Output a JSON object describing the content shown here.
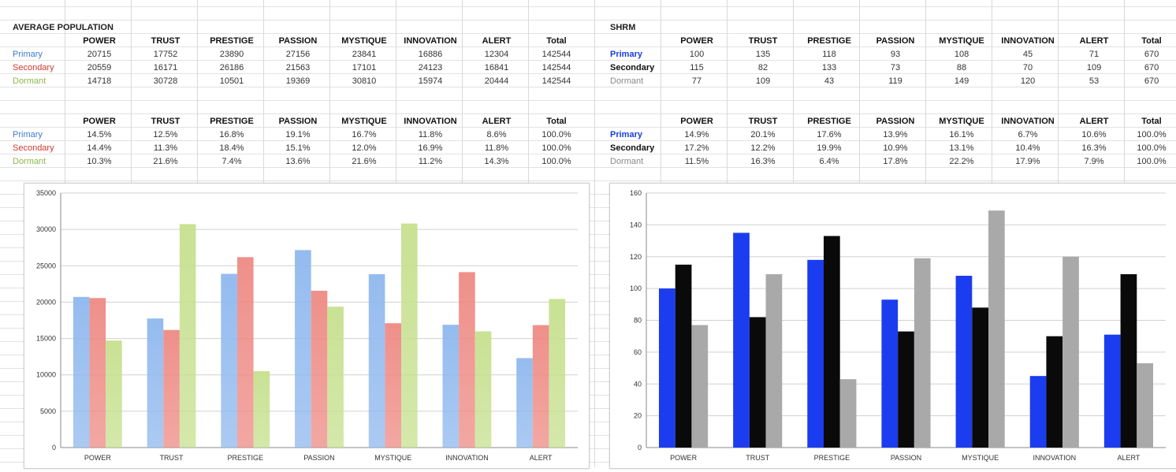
{
  "left_table": {
    "title": "AVERAGE POPULATION",
    "headers": [
      "POWER",
      "TRUST",
      "PRESTIGE",
      "PASSION",
      "MYSTIQUE",
      "INNOVATION",
      "ALERT",
      "Total"
    ],
    "rows": [
      {
        "label": "Primary",
        "color": "#3d7ad6",
        "values": [
          "20715",
          "17752",
          "23890",
          "27156",
          "23841",
          "16886",
          "12304",
          "142544"
        ]
      },
      {
        "label": "Secondary",
        "color": "#d2392e",
        "values": [
          "20559",
          "16171",
          "26186",
          "21563",
          "17101",
          "24123",
          "16841",
          "142544"
        ]
      },
      {
        "label": "Dormant",
        "color": "#8cb84a",
        "values": [
          "14718",
          "30728",
          "10501",
          "19369",
          "30810",
          "15974",
          "20444",
          "142544"
        ]
      }
    ],
    "pct_headers": [
      "POWER",
      "TRUST",
      "PRESTIGE",
      "PASSION",
      "MYSTIQUE",
      "INNOVATION",
      "ALERT",
      "Total"
    ],
    "pct_rows": [
      {
        "label": "Primary",
        "color": "#3d7ad6",
        "values": [
          "14.5%",
          "12.5%",
          "16.8%",
          "19.1%",
          "16.7%",
          "11.8%",
          "8.6%",
          "100.0%"
        ]
      },
      {
        "label": "Secondary",
        "color": "#d2392e",
        "values": [
          "14.4%",
          "11.3%",
          "18.4%",
          "15.1%",
          "12.0%",
          "16.9%",
          "11.8%",
          "100.0%"
        ]
      },
      {
        "label": "Dormant",
        "color": "#8cb84a",
        "values": [
          "10.3%",
          "21.6%",
          "7.4%",
          "13.6%",
          "21.6%",
          "11.2%",
          "14.3%",
          "100.0%"
        ]
      }
    ]
  },
  "right_table": {
    "title": "SHRM",
    "headers": [
      "POWER",
      "TRUST",
      "PRESTIGE",
      "PASSION",
      "MYSTIQUE",
      "INNOVATION",
      "ALERT",
      "Total"
    ],
    "rows": [
      {
        "label": "Primary",
        "color": "#1a3fe0",
        "values": [
          "100",
          "135",
          "118",
          "93",
          "108",
          "45",
          "71",
          "670"
        ]
      },
      {
        "label": "Secondary",
        "color": "#111111",
        "values": [
          "115",
          "82",
          "133",
          "73",
          "88",
          "70",
          "109",
          "670"
        ]
      },
      {
        "label": "Dormant",
        "color": "#8a8a8a",
        "values": [
          "77",
          "109",
          "43",
          "119",
          "149",
          "120",
          "53",
          "670"
        ]
      }
    ],
    "pct_headers": [
      "POWER",
      "TRUST",
      "PRESTIGE",
      "PASSION",
      "MYSTIQUE",
      "INNOVATION",
      "ALERT",
      "Total"
    ],
    "pct_rows": [
      {
        "label": "Primary",
        "color": "#1a3fe0",
        "values": [
          "14.9%",
          "20.1%",
          "17.6%",
          "13.9%",
          "16.1%",
          "6.7%",
          "10.6%",
          "100.0%"
        ]
      },
      {
        "label": "Secondary",
        "color": "#111111",
        "values": [
          "17.2%",
          "12.2%",
          "19.9%",
          "10.9%",
          "13.1%",
          "10.4%",
          "16.3%",
          "100.0%"
        ]
      },
      {
        "label": "Dormant",
        "color": "#8a8a8a",
        "values": [
          "11.5%",
          "16.3%",
          "6.4%",
          "17.8%",
          "22.2%",
          "17.9%",
          "7.9%",
          "100.0%"
        ]
      }
    ]
  },
  "chart_data": [
    {
      "type": "bar",
      "categories": [
        "POWER",
        "TRUST",
        "PRESTIGE",
        "PASSION",
        "MYSTIQUE",
        "INNOVATION",
        "ALERT"
      ],
      "series": [
        {
          "values": [
            20715,
            17752,
            23890,
            27156,
            23841,
            16886,
            12304
          ],
          "color": "#8fb8ee"
        },
        {
          "values": [
            20559,
            16171,
            26186,
            21563,
            17101,
            24123,
            16841
          ],
          "color": "#ee8a84"
        },
        {
          "values": [
            14718,
            30728,
            10501,
            19369,
            30810,
            15974,
            20444
          ],
          "color": "#c6e08e"
        }
      ],
      "yticks": [
        0,
        5000,
        10000,
        15000,
        20000,
        25000,
        30000,
        35000
      ],
      "ylim": [
        0,
        35000
      ],
      "grid": true,
      "legend": false,
      "style": "gradient"
    },
    {
      "type": "bar",
      "categories": [
        "POWER",
        "TRUST",
        "PRESTIGE",
        "PASSION",
        "MYSTIQUE",
        "INNOVATION",
        "ALERT"
      ],
      "series": [
        {
          "values": [
            100,
            135,
            118,
            93,
            108,
            45,
            71
          ],
          "color": "#1c3cf0"
        },
        {
          "values": [
            115,
            82,
            133,
            73,
            88,
            70,
            109
          ],
          "color": "#0a0a0a"
        },
        {
          "values": [
            77,
            109,
            43,
            119,
            149,
            120,
            53
          ],
          "color": "#a9a9a9"
        }
      ],
      "yticks": [
        0,
        20,
        40,
        60,
        80,
        100,
        120,
        140,
        160
      ],
      "ylim": [
        0,
        160
      ],
      "grid": true,
      "legend": false,
      "style": "solid"
    }
  ]
}
